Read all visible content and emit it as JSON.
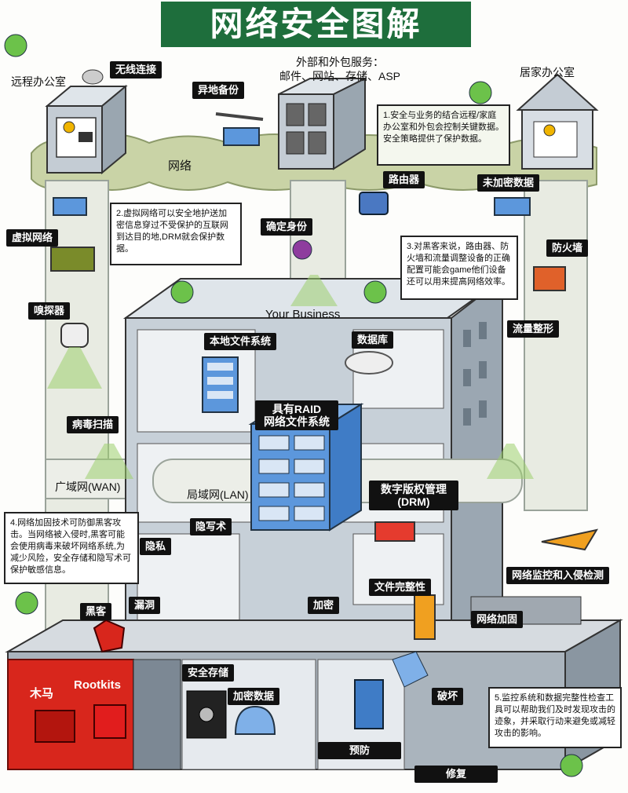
{
  "title": "网络安全图解",
  "locations": {
    "remote_office": "远程办公室",
    "home_office": "居家办公室",
    "outsourced_services": "外部和外包服务：\n邮件、网站、存储、ASP",
    "network": "网络",
    "your_business": "Your Business",
    "wan": "广域网(WAN)",
    "lan": "局域网(LAN)"
  },
  "labels": {
    "wireless": "无线连接",
    "offsite_backup": "异地备份",
    "router": "路由器",
    "unencrypted_data": "未加密数据",
    "virtual_network": "虚拟网络",
    "authentication": "确定身份",
    "firewall": "防火墙",
    "sniffer": "嗅探器",
    "traffic_shaping": "流量整形",
    "local_file_system": "本地文件系统",
    "database": "数据库",
    "virus_scan": "病毒扫描",
    "raid_nas": "具有RAID\n网络文件系统",
    "drm": "数字版权管理\n(DRM)",
    "steganography": "隐写术",
    "privacy": "隐私",
    "ids": "网络监控和入侵检测",
    "hacker": "黑客",
    "vulnerability": "漏洞",
    "encryption": "加密",
    "file_integrity": "文件完整性",
    "hardening": "网络加固",
    "trojan": "木马",
    "rootkits": "Rootkits",
    "secure_storage": "安全存储",
    "encrypted_data": "加密数据",
    "destruction": "破坏",
    "prevention": "预防",
    "repair": "修复"
  },
  "notes": {
    "n1": "1.安全与业务的结合远程/家庭办公室和外包会控制关键数据。安全策略提供了保护数据。",
    "n2": "2.虚拟网络可以安全地护送加密信息穿过不受保护的互联网到达目的地,DRM就会保护数据。",
    "n3": "3.对黑客来说，路由器、防火墙和流量调整设备的正确配置可能会game他们设备还可以用来提高网络效率。",
    "n4": "4.网络加固技术可防御黑客攻击。当网络被入侵时,黑客可能会使用病毒来破坏网络系统,为减少风险，安全存储和隐写术可保护敏感信息。",
    "n5": "5.监控系统和数据完整性检查工具可以帮助我们及时发现攻击的迹象，并采取行动来避免或减轻攻击的影响。"
  },
  "colors": {
    "title_bg": "#1e6e3c",
    "network_band": "#c9d3a6",
    "building": "#b9c4ce",
    "danger": "#d8261c",
    "label_bg": "#111111"
  }
}
